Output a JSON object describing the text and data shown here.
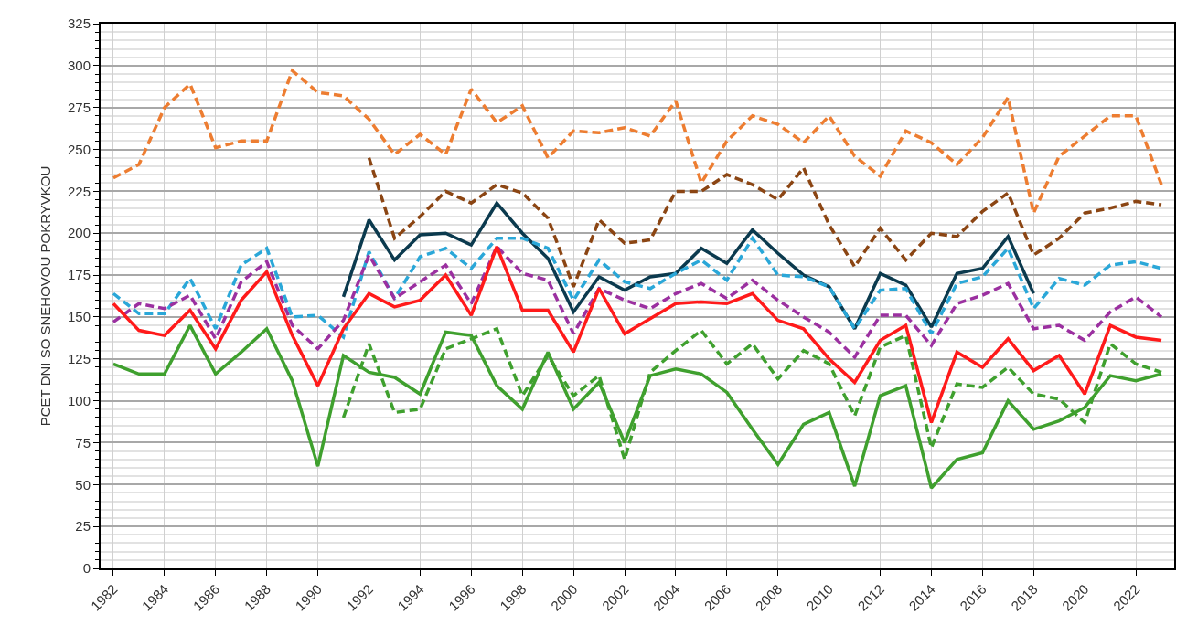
{
  "chart_data": {
    "type": "line",
    "ylabel": "PCET DNI SO SNEHOVOU POKRYVKOU",
    "categories": [
      "1982",
      null,
      "1984",
      null,
      "1986",
      null,
      "1988",
      null,
      "1990",
      null,
      "1992",
      null,
      "1994",
      null,
      "1996",
      null,
      "1998",
      null,
      "2000",
      null,
      "2002",
      null,
      "2004",
      null,
      "2006",
      null,
      "2008",
      null,
      "2010",
      null,
      "2012",
      null,
      "2014",
      null,
      "2016",
      null,
      "2018",
      null,
      "2020",
      null,
      "2022",
      null
    ],
    "ylim": [
      0,
      325
    ],
    "yticks": [
      0,
      25,
      50,
      75,
      100,
      125,
      150,
      175,
      200,
      225,
      250,
      275,
      300,
      325
    ],
    "grid": true,
    "marker": "none",
    "series": [
      {
        "color": "#ed7d31",
        "line_style": "dashed",
        "values": [
          233,
          241,
          275,
          289,
          251,
          255,
          255,
          297,
          284,
          282,
          268,
          247,
          259,
          247,
          286,
          266,
          276,
          245,
          261,
          260,
          263,
          258,
          279,
          230,
          255,
          270,
          265,
          254,
          270,
          246,
          234,
          261,
          254,
          241,
          257,
          281,
          212,
          246,
          258,
          270,
          270,
          229
        ]
      },
      {
        "color": "#8b4513",
        "line_style": "dashed",
        "values": [
          null,
          null,
          null,
          null,
          null,
          null,
          null,
          null,
          null,
          null,
          245,
          197,
          210,
          225,
          218,
          229,
          224,
          209,
          168,
          208,
          194,
          196,
          225,
          225,
          235,
          229,
          220,
          239,
          205,
          180,
          203,
          184,
          200,
          198,
          213,
          224,
          187,
          197,
          212,
          215,
          219,
          217
        ]
      },
      {
        "color": "#0b3a4e",
        "line_style": "solid",
        "values": [
          null,
          null,
          null,
          null,
          null,
          null,
          null,
          null,
          null,
          162,
          208,
          184,
          199,
          200,
          193,
          218,
          200,
          185,
          153,
          174,
          166,
          174,
          176,
          191,
          182,
          202,
          188,
          175,
          168,
          143,
          176,
          169,
          144,
          176,
          179,
          198,
          164,
          null,
          null,
          null,
          null,
          null
        ]
      },
      {
        "color": "#2aa7d8",
        "line_style": "dashed",
        "values": [
          164,
          152,
          152,
          173,
          143,
          181,
          191,
          150,
          151,
          138,
          189,
          161,
          186,
          191,
          179,
          197,
          197,
          191,
          160,
          184,
          171,
          167,
          176,
          184,
          172,
          197,
          175,
          174,
          168,
          143,
          166,
          167,
          140,
          170,
          174,
          191,
          155,
          173,
          169,
          181,
          183,
          179
        ]
      },
      {
        "color": "#9b30a0",
        "line_style": "dashed",
        "values": [
          147,
          158,
          155,
          163,
          137,
          171,
          183,
          145,
          131,
          148,
          187,
          161,
          171,
          181,
          158,
          192,
          176,
          172,
          140,
          167,
          160,
          155,
          164,
          170,
          161,
          172,
          160,
          150,
          141,
          126,
          151,
          151,
          133,
          158,
          163,
          170,
          143,
          145,
          136,
          153,
          162,
          150
        ]
      },
      {
        "color": "#ff1a1a",
        "line_style": "solid",
        "values": [
          158,
          142,
          139,
          154,
          131,
          160,
          177,
          139,
          109,
          143,
          164,
          156,
          160,
          175,
          151,
          192,
          154,
          154,
          129,
          167,
          140,
          149,
          158,
          159,
          158,
          164,
          148,
          143,
          125,
          111,
          136,
          145,
          87,
          129,
          120,
          137,
          118,
          127,
          104,
          145,
          138,
          136
        ]
      },
      {
        "color": "#3fa02e",
        "line_style": "solid",
        "values": [
          122,
          116,
          116,
          145,
          116,
          129,
          143,
          112,
          61,
          127,
          117,
          114,
          104,
          141,
          139,
          109,
          95,
          129,
          95,
          111,
          75,
          115,
          119,
          116,
          105,
          83,
          62,
          86,
          93,
          49,
          103,
          109,
          48,
          65,
          69,
          100,
          83,
          88,
          96,
          115,
          112,
          116
        ]
      },
      {
        "color": "#3fa02e",
        "line_style": "dashed",
        "values": [
          null,
          null,
          null,
          null,
          null,
          null,
          null,
          null,
          null,
          90,
          134,
          93,
          95,
          131,
          137,
          143,
          103,
          127,
          103,
          115,
          65,
          117,
          130,
          142,
          122,
          134,
          113,
          130,
          122,
          91,
          132,
          139,
          72,
          110,
          108,
          120,
          104,
          101,
          87,
          134,
          122,
          117
        ]
      }
    ]
  }
}
